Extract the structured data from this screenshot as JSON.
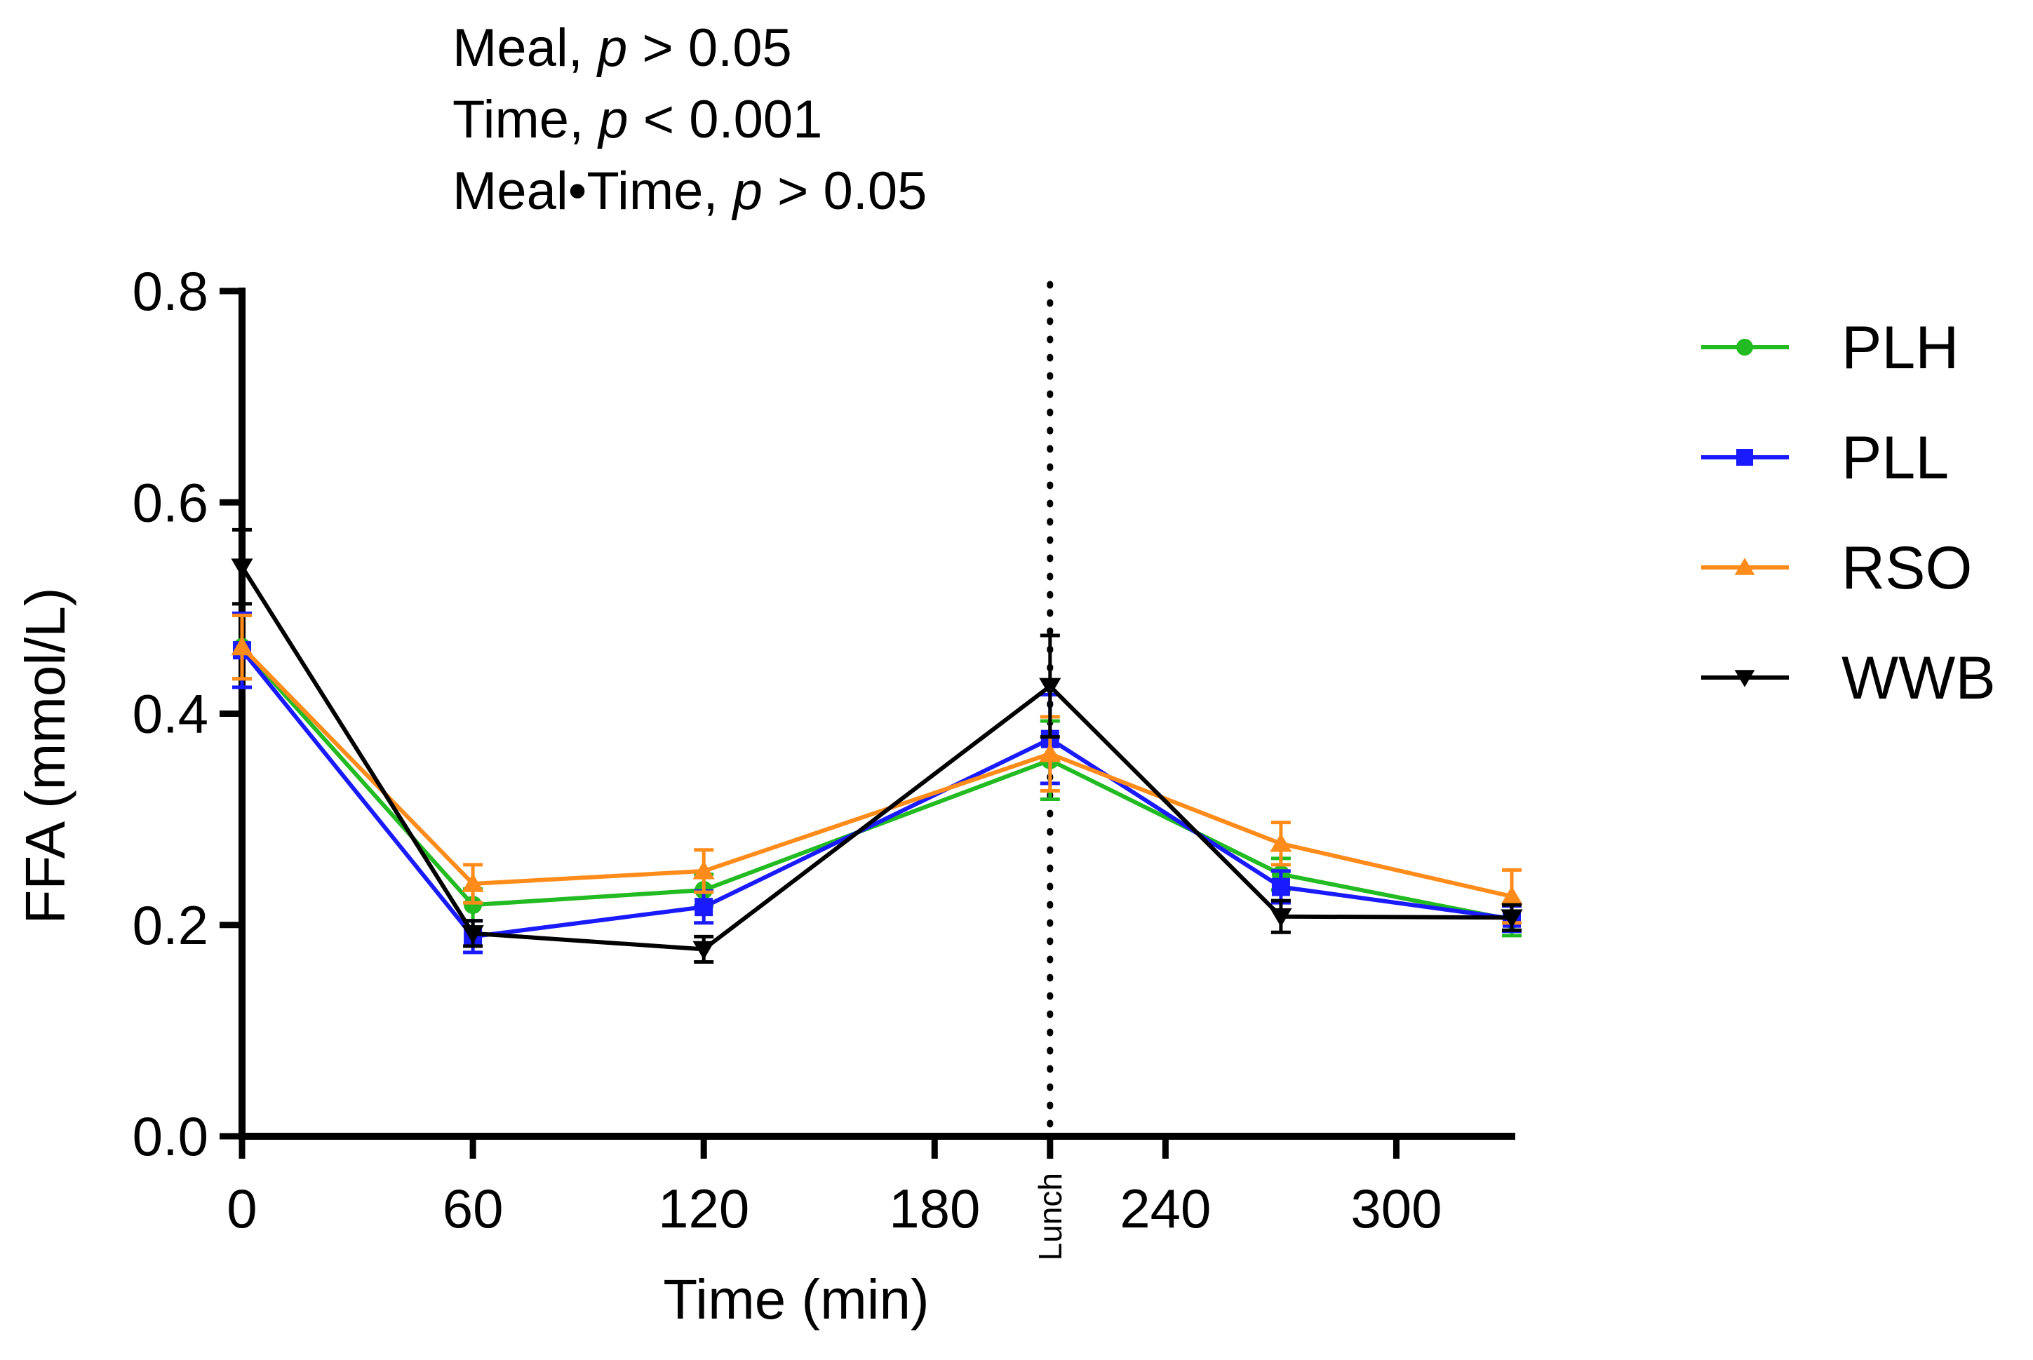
{
  "stats": [
    {
      "prefix": "Meal, ",
      "p": "p",
      "suffix": " > 0.05"
    },
    {
      "prefix": "Time, ",
      "p": "p",
      "suffix": " < 0.001"
    },
    {
      "prefix": "Meal•Time, ",
      "p": "p",
      "suffix": " > 0.05"
    }
  ],
  "chart_data": {
    "type": "line",
    "xlabel": "Time (min)",
    "ylabel": "FFA (mmol/L)",
    "xlim": [
      0,
      330
    ],
    "ylim": [
      0,
      0.8
    ],
    "xticks": [
      0,
      60,
      120,
      180,
      240,
      300
    ],
    "xtick_labels": [
      "0",
      "60",
      "120",
      "180",
      "240",
      "300"
    ],
    "yticks": [
      0,
      0.2,
      0.4,
      0.6,
      0.8
    ],
    "ytick_labels": [
      "0.0",
      "0.2",
      "0.4",
      "0.6",
      "0.8"
    ],
    "annotation": {
      "label": "Lunch",
      "x": 210
    },
    "x": [
      0,
      60,
      120,
      210,
      270,
      330
    ],
    "series": [
      {
        "name": "PLH",
        "color": "#22bb22",
        "marker": "circle",
        "values": [
          0.463,
          0.219,
          0.233,
          0.356,
          0.248,
          0.205
        ],
        "errors": [
          0.03,
          0.015,
          0.015,
          0.037,
          0.015,
          0.015
        ]
      },
      {
        "name": "PLL",
        "color": "#1a1aff",
        "marker": "square",
        "values": [
          0.46,
          0.189,
          0.217,
          0.376,
          0.236,
          0.206
        ],
        "errors": [
          0.035,
          0.015,
          0.015,
          0.042,
          0.015,
          0.012
        ]
      },
      {
        "name": "RSO",
        "color": "#ff8c1a",
        "marker": "triangle-up",
        "values": [
          0.463,
          0.239,
          0.251,
          0.362,
          0.277,
          0.227
        ],
        "errors": [
          0.03,
          0.018,
          0.02,
          0.035,
          0.02,
          0.025
        ]
      },
      {
        "name": "WWB",
        "color": "#000000",
        "marker": "triangle-down",
        "values": [
          0.539,
          0.192,
          0.177,
          0.426,
          0.208,
          0.207
        ],
        "errors": [
          0.035,
          0.012,
          0.012,
          0.048,
          0.015,
          0.012
        ]
      }
    ]
  }
}
